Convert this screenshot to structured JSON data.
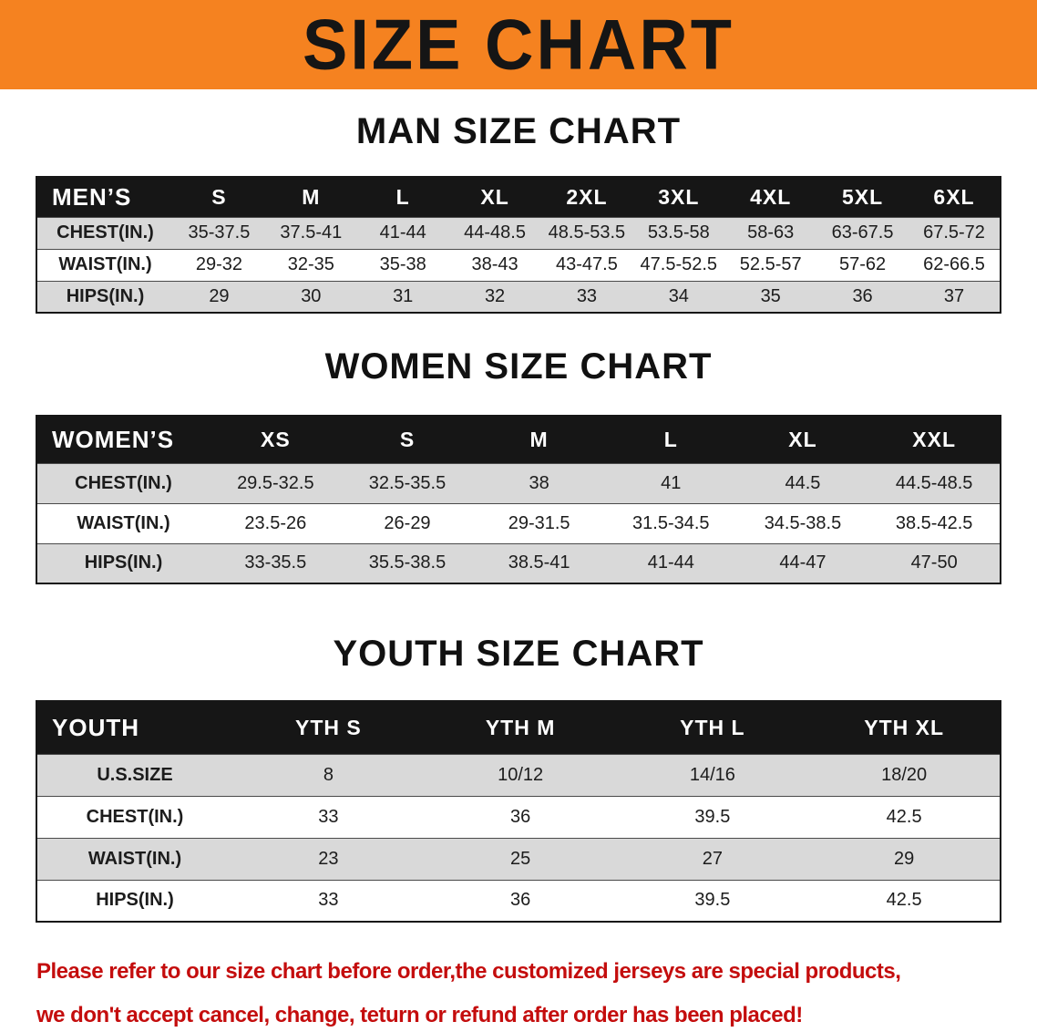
{
  "banner": {
    "title": "SIZE CHART",
    "bg_color": "#f58220",
    "text_color": "#151515"
  },
  "colors": {
    "table_header_bg": "#161616",
    "table_header_text": "#ffffff",
    "row_stripe_grey": "#d9d9d9",
    "footer_red": "#c40d0d"
  },
  "sections": [
    {
      "heading": "MAN SIZE CHART",
      "table": {
        "header": [
          "MEN’S",
          "S",
          "M",
          "L",
          "XL",
          "2XL",
          "3XL",
          "4XL",
          "5XL",
          "6XL"
        ],
        "rows": [
          [
            "CHEST(IN.)",
            "35-37.5",
            "37.5-41",
            "41-44",
            "44-48.5",
            "48.5-53.5",
            "53.5-58",
            "58-63",
            "63-67.5",
            "67.5-72"
          ],
          [
            "WAIST(IN.)",
            "29-32",
            "32-35",
            "35-38",
            "38-43",
            "43-47.5",
            "47.5-52.5",
            "52.5-57",
            "57-62",
            "62-66.5"
          ],
          [
            "HIPS(IN.)",
            "29",
            "30",
            "31",
            "32",
            "33",
            "34",
            "35",
            "36",
            "37"
          ]
        ]
      }
    },
    {
      "heading": "WOMEN SIZE CHART",
      "table": {
        "header": [
          "WOMEN’S",
          "XS",
          "S",
          "M",
          "L",
          "XL",
          "XXL"
        ],
        "rows": [
          [
            "CHEST(IN.)",
            "29.5-32.5",
            "32.5-35.5",
            "38",
            "41",
            "44.5",
            "44.5-48.5"
          ],
          [
            "WAIST(IN.)",
            "23.5-26",
            "26-29",
            "29-31.5",
            "31.5-34.5",
            "34.5-38.5",
            "38.5-42.5"
          ],
          [
            "HIPS(IN.)",
            "33-35.5",
            "35.5-38.5",
            "38.5-41",
            "41-44",
            "44-47",
            "47-50"
          ]
        ]
      }
    },
    {
      "heading": "YOUTH SIZE CHART",
      "table": {
        "header": [
          "YOUTH",
          "YTH S",
          "YTH M",
          "YTH L",
          "YTH XL"
        ],
        "rows": [
          [
            "U.S.SIZE",
            "8",
            "10/12",
            "14/16",
            "18/20"
          ],
          [
            "CHEST(IN.)",
            "33",
            "36",
            "39.5",
            "42.5"
          ],
          [
            "WAIST(IN.)",
            "23",
            "25",
            "27",
            "29"
          ],
          [
            "HIPS(IN.)",
            "33",
            "36",
            "39.5",
            "42.5"
          ]
        ]
      }
    }
  ],
  "footer_note": {
    "line1": "Please refer to our size chart before order,the customized jerseys are special products,",
    "line2": "we don't accept cancel, change, teturn or refund after order has been placed!"
  }
}
